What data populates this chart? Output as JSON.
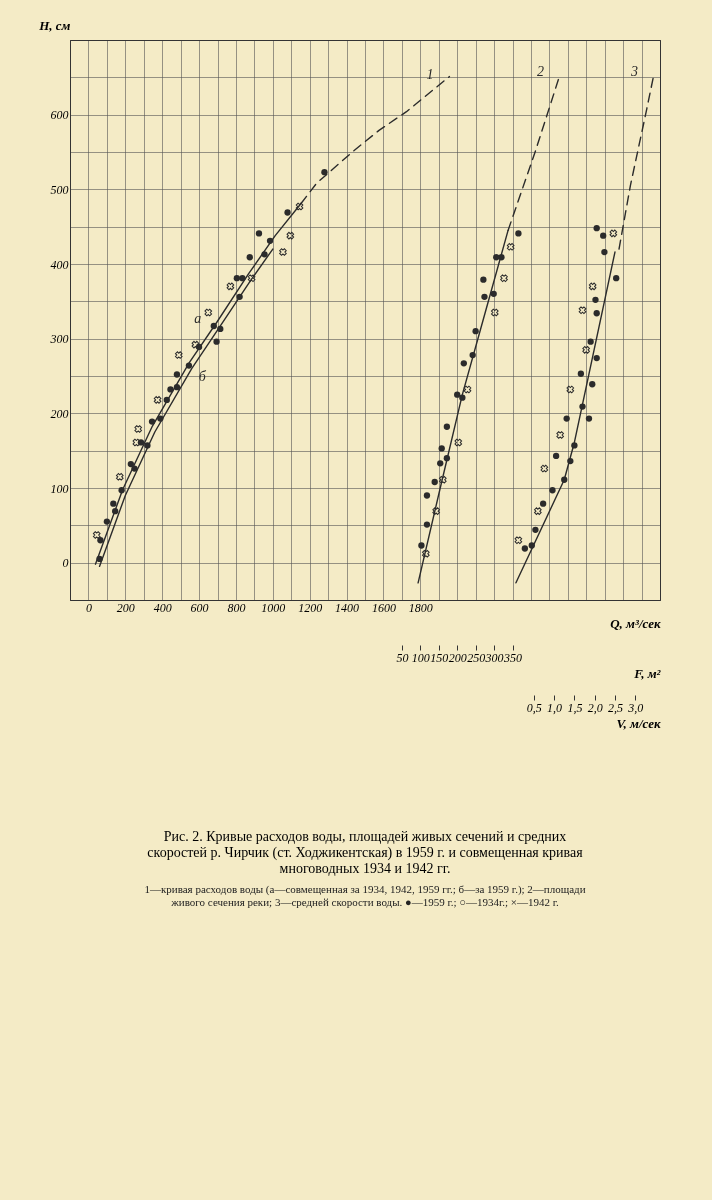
{
  "chart_data": [
    {
      "type": "scatter",
      "title": "Рис. 2. Кривые расходов воды, площадей живых сечений и средних скоростей р. Чирчик (ст. Ходжикентская) в 1959 г. и совмещенная кривая многоводных 1934 и 1942 гг.",
      "annotations": [
        "1—кривая расходов воды (а—совмещенная за 1934, 1942, 1959 гг.; б—за 1959 г.); 2—площади живого сечения реки; 3—средней скорости воды. ●—1959 г.; ○—1934г.; ×—1942 г."
      ],
      "xlabel": "Q, м³/сек",
      "x2label": "F, м²",
      "ylabel": "H, см",
      "xlim": [
        -100,
        3100
      ],
      "x2lim": [
        -850,
        750
      ],
      "ylim": [
        -50,
        700
      ],
      "xticks": [
        0,
        {
          "value": 100,
          "label": null
        },
        200,
        {
          "value": 300,
          "label": null
        },
        400,
        {
          "value": 500,
          "label": null
        },
        600,
        {
          "value": 700,
          "label": null
        },
        800,
        {
          "value": 900,
          "label": null
        },
        1000,
        {
          "value": 1100,
          "label": null
        },
        1200,
        {
          "value": 1300,
          "label": null
        },
        1400,
        {
          "value": 1500,
          "label": null
        },
        1600,
        {
          "value": 1700,
          "label": null
        },
        1800,
        {
          "value": 1900,
          "label": null
        },
        {
          "value": 2000,
          "label": null
        },
        {
          "value": 2100,
          "label": null
        },
        {
          "value": 2200,
          "label": null
        },
        {
          "value": 2300,
          "label": null
        },
        {
          "value": 2400,
          "label": null
        },
        {
          "value": 2500,
          "label": null
        },
        {
          "value": 2600,
          "label": null
        },
        {
          "value": 2700,
          "label": null
        },
        {
          "value": 2800,
          "label": null
        },
        {
          "value": 2900,
          "label": null
        },
        {
          "value": 3000,
          "label": null
        }
      ],
      "x2ticks": [
        50,
        100,
        150,
        200,
        250,
        300,
        350
      ],
      "yticks": [
        0,
        {
          "value": 50,
          "label": null
        },
        100,
        {
          "value": 150,
          "label": null
        },
        200,
        {
          "value": 250,
          "label": null
        },
        300,
        {
          "value": 350,
          "label": null
        },
        400,
        {
          "value": 450,
          "label": null
        },
        500,
        {
          "value": 550,
          "label": null
        },
        600,
        {
          "value": 650,
          "label": null
        }
      ],
      "grid": true,
      "series": [
        {
          "name": "а",
          "type": "line",
          "line_style": "solid",
          "color": "#2b2b2b",
          "x": [
            38,
            186,
            347,
            547,
            699,
            869,
            1013,
            1153
          ],
          "values": [
            -2,
            98,
            183,
            268,
            323,
            387,
            438,
            481
          ]
        },
        {
          "name": "б",
          "type": "line",
          "line_style": "solid",
          "color": "#2b2b2b",
          "x": [
            60,
            200,
            360,
            560,
            710,
            880,
            1000
          ],
          "values": [
            -5,
            90,
            175,
            260,
            315,
            378,
            420
          ]
        },
        {
          "name": "1",
          "type": "line",
          "line_style": "dashed",
          "color": "#2b2b2b",
          "x": [
            1153,
            1237,
            1436,
            1576,
            1725,
            1958
          ],
          "values": [
            481,
            508,
            551,
            579,
            604,
            651
          ]
        },
        {
          "marker": "circle",
          "color": "#2b2b2b",
          "x": [
            1080,
            955,
            875,
            835,
            820,
            715,
            695,
            600,
            545,
            480,
            390,
            320,
            250,
            180,
            145,
            60
          ],
          "values": [
            469,
            413,
            409,
            381,
            356,
            313,
            296,
            289,
            264,
            235,
            193,
            157,
            126,
            97,
            69,
            5
          ]
        },
        {
          "marker": "circle",
          "color": "#2b2b2b",
          "x": [
            1280,
            925,
            985,
            805,
            680,
            480,
            445,
            425,
            345,
            285,
            230,
            135,
            100,
            65
          ],
          "values": [
            523,
            441,
            431,
            381,
            317,
            252,
            232,
            218,
            189,
            161,
            132,
            79,
            55,
            30
          ]
        },
        {
          "marker": "cross",
          "color": "#2b2b2b",
          "x": [
            1145,
            1095,
            1055,
            885,
            770,
            650,
            580,
            490,
            375,
            270,
            260,
            170,
            45
          ],
          "values": [
            477,
            438,
            416,
            381,
            370,
            335,
            292,
            278,
            218,
            179,
            161,
            115,
            37
          ]
        },
        {
          "type": "line",
          "axis": "x2",
          "line_style": "solid",
          "color": "#2b2b2b",
          "x": [
            94,
            154,
            214,
            276,
            338
          ],
          "values": [
            -27,
            100,
            225,
            335,
            445
          ]
        },
        {
          "name": "2",
          "type": "line",
          "axis": "x2",
          "line_style": "dashed",
          "color": "#2b2b2b",
          "x": [
            338,
            412,
            479
          ],
          "values": [
            445,
            551,
            654
          ]
        },
        {
          "axis": "x2",
          "marker": "circle",
          "color": "#2b2b2b",
          "x": [
            320,
            271,
            274,
            242,
            218,
            200,
            158,
            154,
            139
          ],
          "values": [
            409,
            379,
            356,
            278,
            267,
            225,
            153,
            133,
            108
          ]
        },
        {
          "axis": "x2",
          "marker": "circle",
          "color": "#2b2b2b",
          "x": [
            366,
            306,
            299,
            250,
            214,
            172,
            172,
            118,
            118,
            103
          ],
          "values": [
            441,
            409,
            360,
            310,
            221,
            182,
            140,
            90,
            51,
            23
          ]
        },
        {
          "axis": "x2",
          "marker": "cross",
          "color": "#2b2b2b",
          "x": [
            345,
            327,
            302,
            228,
            203,
            161,
            143,
            115
          ],
          "values": [
            423,
            381,
            335,
            232,
            161,
            111,
            69,
            12
          ]
        }
      ]
    },
    {
      "type": "scatter",
      "xlabel": "V, м/сек",
      "xlim": [
        -10.93,
        3.61
      ],
      "ylim": [
        -50,
        700
      ],
      "tick_labels": "x",
      "xticks": [
        {
          "value": 0.5,
          "label": "0,5"
        },
        {
          "value": 1.0,
          "label": "1,0"
        },
        {
          "value": 1.5,
          "label": "1,5"
        },
        {
          "value": 2.0,
          "label": "2,0"
        },
        {
          "value": 2.5,
          "label": "2,5"
        },
        {
          "value": 3.0,
          "label": "3,0"
        }
      ],
      "series": [
        {
          "type": "line",
          "line_style": "solid",
          "color": "#2b2b2b",
          "x": [
            0.06,
            1.25,
            1.5,
            2.5
          ],
          "values": [
            -27,
            111,
            161,
            416
          ]
        },
        {
          "name": "3",
          "type": "line",
          "line_style": "dashed",
          "color": "#2b2b2b",
          "x": [
            2.6,
            2.88,
            3.27,
            3.46
          ],
          "values": [
            420,
            505,
            604,
            654
          ]
        },
        {
          "marker": "circle",
          "color": "#2b2b2b",
          "x": [
            2.24,
            2.53,
            1.9,
            2.05,
            1.94,
            1.7,
            1.5,
            1.4,
            1.25,
            0.73,
            0.28
          ],
          "values": [
            416,
            381,
            296,
            274,
            239,
            209,
            157,
            136,
            111,
            79,
            19
          ]
        },
        {
          "marker": "circle",
          "color": "#2b2b2b",
          "x": [
            2.05,
            2.21,
            2.02,
            2.05,
            1.66,
            1.86,
            1.31,
            1.05,
            0.96,
            0.54,
            0.45
          ],
          "values": [
            448,
            438,
            352,
            334,
            253,
            193,
            193,
            143,
            97,
            44,
            23
          ]
        },
        {
          "marker": "cross",
          "color": "#2b2b2b",
          "x": [
            2.46,
            1.95,
            1.7,
            1.79,
            1.4,
            1.15,
            0.76,
            0.6,
            0.12
          ],
          "values": [
            441,
            370,
            338,
            285,
            232,
            171,
            126,
            69,
            30
          ]
        }
      ]
    }
  ]
}
